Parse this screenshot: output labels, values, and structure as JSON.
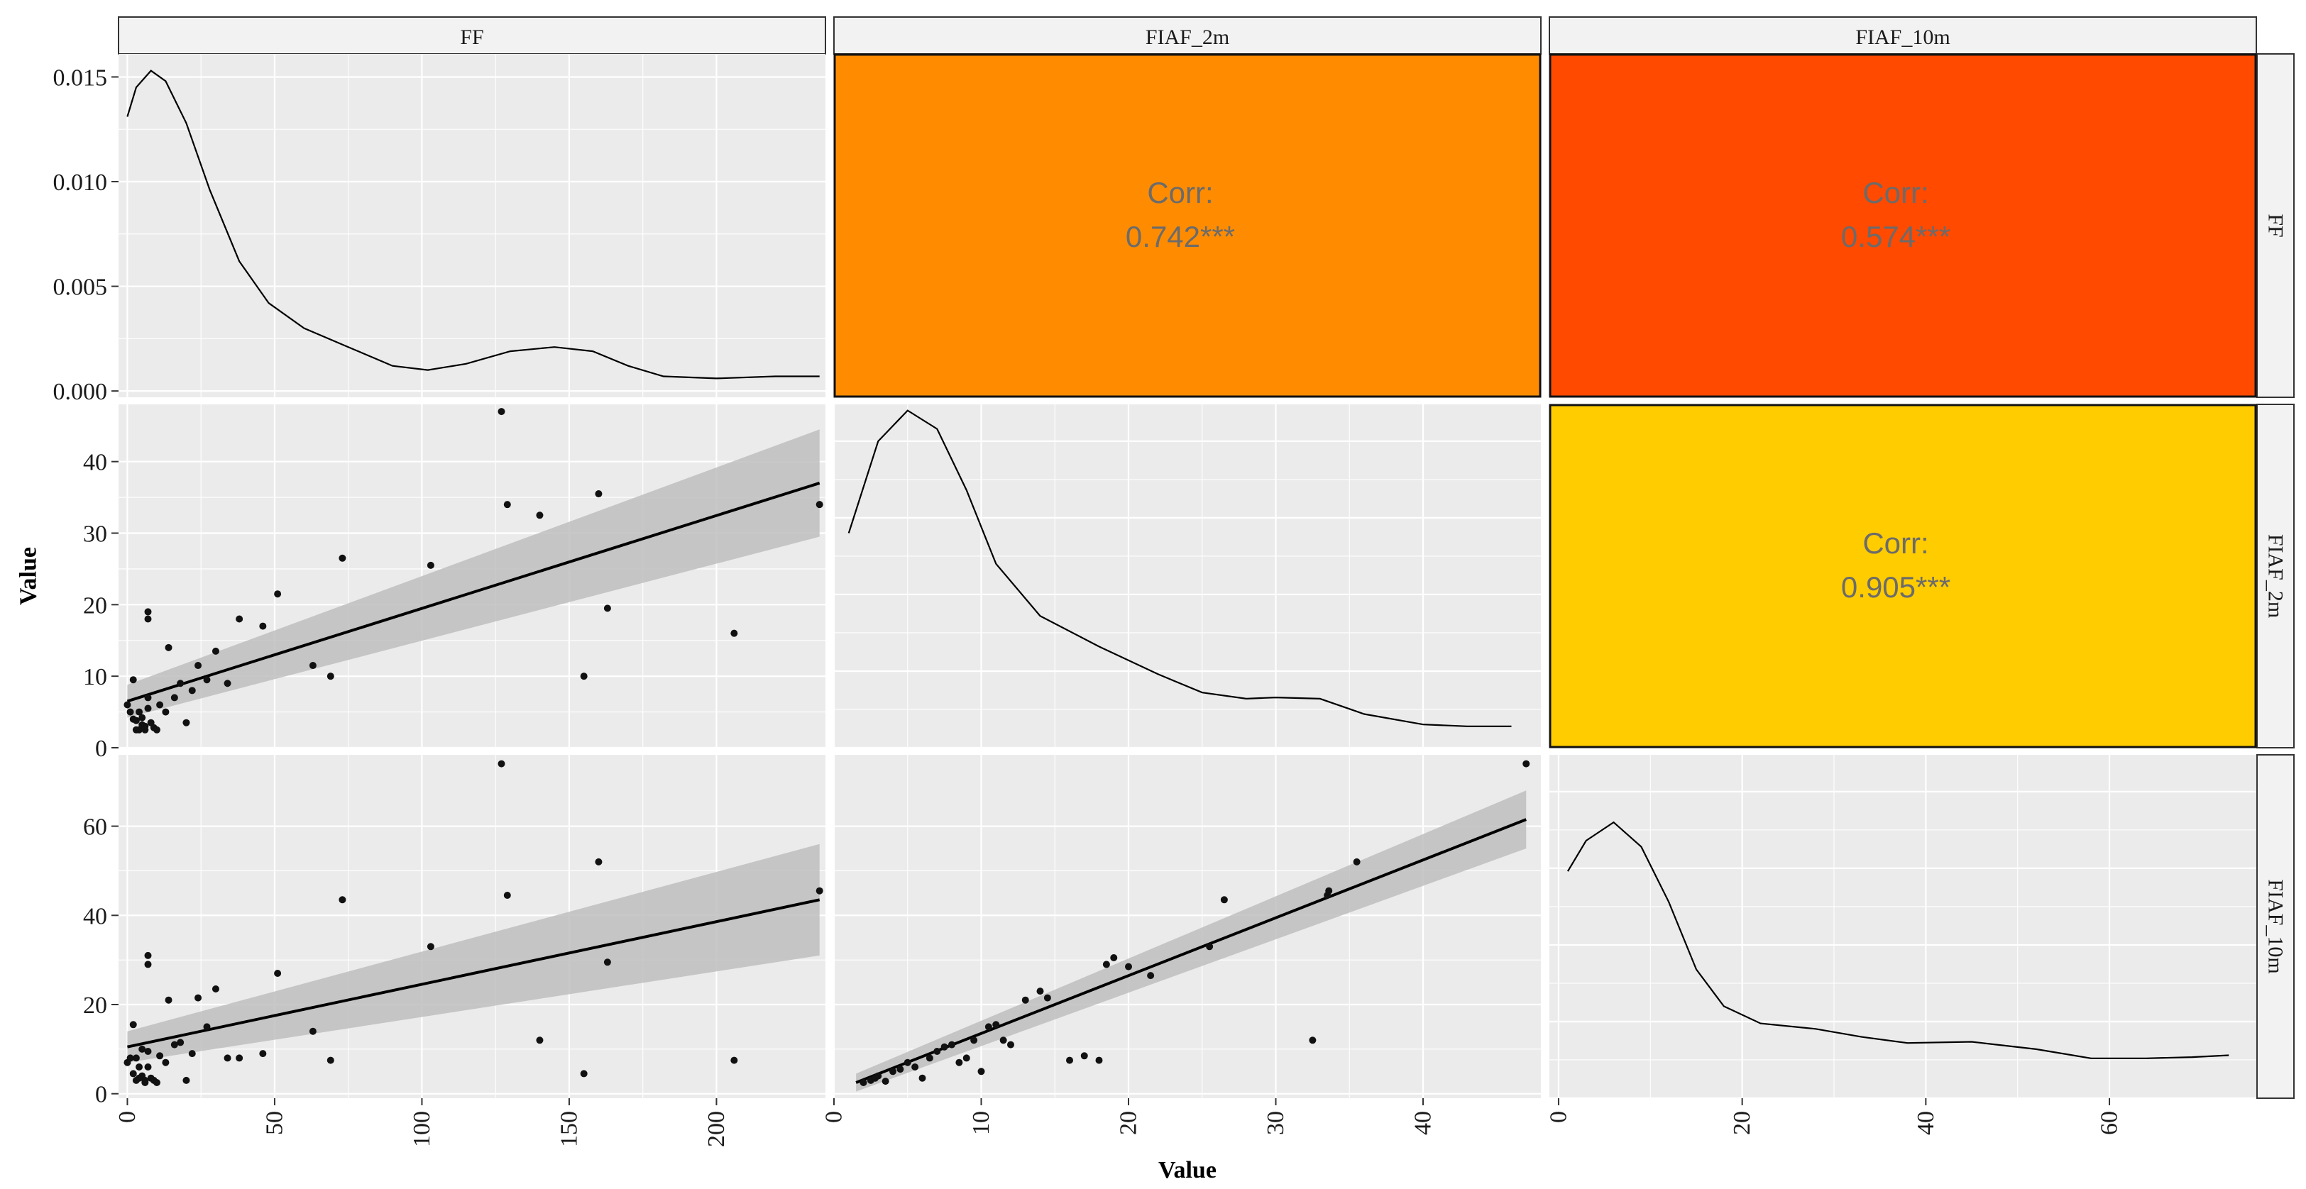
{
  "chart_data": {
    "type": "scatter",
    "title": "",
    "xlabel": "Value",
    "ylabel": "Value",
    "variables": [
      "FF",
      "FIAF_2m",
      "FIAF_10m"
    ],
    "axes": {
      "FF": {
        "range": [
          -3,
          237
        ],
        "ticks": [
          0,
          50,
          100,
          150,
          200
        ]
      },
      "FIAF_2m": {
        "range": [
          0,
          48
        ],
        "ticks": [
          0,
          10,
          20,
          30,
          40
        ]
      },
      "FIAF_10m": {
        "range": [
          -1,
          76
        ],
        "ticks": [
          0,
          20,
          40,
          60
        ]
      }
    },
    "density_axis": {
      "range": [
        -0.0003,
        0.0161
      ],
      "ticks": [
        0.0,
        0.005,
        0.01,
        0.015
      ],
      "tick_labels": [
        "0.000",
        "0.005",
        "0.010",
        "0.015"
      ]
    },
    "densities": {
      "FF": [
        [
          0,
          0.0131
        ],
        [
          3,
          0.0145
        ],
        [
          8,
          0.0153
        ],
        [
          13,
          0.0148
        ],
        [
          20,
          0.0128
        ],
        [
          28,
          0.0096
        ],
        [
          38,
          0.0062
        ],
        [
          48,
          0.0042
        ],
        [
          60,
          0.003
        ],
        [
          75,
          0.0021
        ],
        [
          90,
          0.0012
        ],
        [
          102,
          0.001
        ],
        [
          115,
          0.0013
        ],
        [
          130,
          0.0019
        ],
        [
          145,
          0.0021
        ],
        [
          158,
          0.0019
        ],
        [
          170,
          0.0012
        ],
        [
          182,
          0.0007
        ],
        [
          200,
          0.0006
        ],
        [
          220,
          0.0007
        ],
        [
          235,
          0.0007
        ]
      ],
      "FIAF_2m": [
        [
          1,
          0.035
        ],
        [
          3,
          0.05
        ],
        [
          5,
          0.055
        ],
        [
          7,
          0.052
        ],
        [
          9,
          0.042
        ],
        [
          11,
          0.03
        ],
        [
          14,
          0.0215
        ],
        [
          18,
          0.0165
        ],
        [
          22,
          0.012
        ],
        [
          25,
          0.009
        ],
        [
          28,
          0.008
        ],
        [
          30,
          0.0082
        ],
        [
          33,
          0.008
        ],
        [
          36,
          0.0055
        ],
        [
          40,
          0.0038
        ],
        [
          43,
          0.0035
        ],
        [
          46,
          0.0035
        ]
      ],
      "FIAF_10m": [
        [
          1,
          0.037
        ],
        [
          3,
          0.042
        ],
        [
          6,
          0.045
        ],
        [
          9,
          0.041
        ],
        [
          12,
          0.032
        ],
        [
          15,
          0.021
        ],
        [
          18,
          0.015
        ],
        [
          22,
          0.0122
        ],
        [
          28,
          0.0113
        ],
        [
          33,
          0.01
        ],
        [
          38,
          0.009
        ],
        [
          45,
          0.0092
        ],
        [
          52,
          0.008
        ],
        [
          58,
          0.0065
        ],
        [
          64,
          0.0065
        ],
        [
          69,
          0.0067
        ],
        [
          73,
          0.007
        ]
      ]
    },
    "density_display_max": 0.056,
    "points": [
      [
        0,
        6
      ],
      [
        1,
        5
      ],
      [
        2,
        9.5
      ],
      [
        2,
        4
      ],
      [
        3,
        2.5
      ],
      [
        3,
        3.8
      ],
      [
        4,
        5
      ],
      [
        4,
        2.5
      ],
      [
        5,
        3.2
      ],
      [
        5,
        4.2
      ],
      [
        6,
        3
      ],
      [
        6,
        2.5
      ],
      [
        7,
        7
      ],
      [
        7,
        5.5
      ],
      [
        7,
        19
      ],
      [
        7,
        18
      ],
      [
        8,
        3.5
      ],
      [
        9,
        2.8
      ],
      [
        10,
        2.5
      ],
      [
        11,
        6
      ],
      [
        13,
        5
      ],
      [
        14,
        14
      ],
      [
        16,
        7
      ],
      [
        18,
        9
      ],
      [
        20,
        3.5
      ],
      [
        22,
        8
      ],
      [
        24,
        11.5
      ],
      [
        27,
        9.5
      ],
      [
        30,
        13.5
      ],
      [
        34,
        9
      ],
      [
        38,
        18
      ],
      [
        46,
        17
      ],
      [
        51,
        21.5
      ],
      [
        63,
        11.5
      ],
      [
        69,
        10
      ],
      [
        73,
        26.5
      ],
      [
        103,
        25.5
      ],
      [
        127,
        47
      ],
      [
        129,
        34
      ],
      [
        140,
        32.5
      ],
      [
        155,
        10
      ],
      [
        160,
        35.5
      ],
      [
        163,
        19.5
      ],
      [
        206,
        16
      ],
      [
        235,
        34
      ]
    ],
    "points_ff_vs_10m": [
      [
        0,
        7
      ],
      [
        1,
        8
      ],
      [
        2,
        15.5
      ],
      [
        2,
        4.5
      ],
      [
        3,
        3
      ],
      [
        3,
        8
      ],
      [
        4,
        6
      ],
      [
        4,
        3.5
      ],
      [
        5,
        4
      ],
      [
        5,
        10
      ],
      [
        6,
        3
      ],
      [
        6,
        2.5
      ],
      [
        7,
        9.5
      ],
      [
        7,
        6
      ],
      [
        7,
        31
      ],
      [
        7,
        29
      ],
      [
        8,
        3.5
      ],
      [
        9,
        3
      ],
      [
        10,
        2.5
      ],
      [
        11,
        8.5
      ],
      [
        13,
        7
      ],
      [
        14,
        21
      ],
      [
        16,
        11
      ],
      [
        18,
        11.5
      ],
      [
        20,
        3
      ],
      [
        22,
        9
      ],
      [
        24,
        21.5
      ],
      [
        27,
        15
      ],
      [
        30,
        23.5
      ],
      [
        34,
        8
      ],
      [
        38,
        8
      ],
      [
        46,
        9
      ],
      [
        51,
        27
      ],
      [
        63,
        14
      ],
      [
        69,
        7.5
      ],
      [
        73,
        43.5
      ],
      [
        103,
        33
      ],
      [
        127,
        74
      ],
      [
        129,
        44.5
      ],
      [
        140,
        12
      ],
      [
        155,
        4.5
      ],
      [
        160,
        52
      ],
      [
        163,
        29.5
      ],
      [
        206,
        7.5
      ],
      [
        235,
        45.5
      ]
    ],
    "points_2m_vs_10m": [
      [
        2,
        2.5
      ],
      [
        2.5,
        3
      ],
      [
        2.8,
        3.5
      ],
      [
        3,
        4
      ],
      [
        3.5,
        2.8
      ],
      [
        4,
        5
      ],
      [
        4.5,
        5.5
      ],
      [
        5,
        7
      ],
      [
        5.5,
        6
      ],
      [
        6,
        3.5
      ],
      [
        6.5,
        8
      ],
      [
        7,
        9.5
      ],
      [
        7.5,
        10.5
      ],
      [
        8,
        11
      ],
      [
        8.5,
        7
      ],
      [
        9,
        8
      ],
      [
        9.5,
        12
      ],
      [
        10,
        5
      ],
      [
        10.5,
        15
      ],
      [
        11,
        15.5
      ],
      [
        11.5,
        12
      ],
      [
        12,
        11
      ],
      [
        13,
        21
      ],
      [
        14,
        23
      ],
      [
        14.5,
        21.5
      ],
      [
        16,
        7.5
      ],
      [
        17,
        8.5
      ],
      [
        18,
        7.5
      ],
      [
        18.5,
        29
      ],
      [
        19,
        30.5
      ],
      [
        20,
        28.5
      ],
      [
        21.5,
        26.5
      ],
      [
        25.5,
        33
      ],
      [
        26.5,
        43.5
      ],
      [
        32.5,
        12
      ],
      [
        33.5,
        44.5
      ],
      [
        33.6,
        45.5
      ],
      [
        35.5,
        52
      ],
      [
        47,
        74
      ]
    ],
    "fits": {
      "FF_vs_FIAF_2m": {
        "x": [
          0,
          235
        ],
        "y": [
          6.5,
          37
        ],
        "se_lo": [
          4.2,
          29.5
        ],
        "se_hi": [
          8.8,
          44.5
        ]
      },
      "FF_vs_FIAF_10m": {
        "x": [
          0,
          235
        ],
        "y": [
          10.5,
          43.5
        ],
        "se_lo": [
          7.0,
          31.0
        ],
        "se_hi": [
          14.0,
          56.0
        ]
      },
      "FIAF_2m_vs_FIAF_10m": {
        "x": [
          1.5,
          47
        ],
        "y": [
          2.5,
          61.5
        ],
        "se_lo": [
          0.5,
          55.0
        ],
        "se_hi": [
          4.5,
          68.0
        ]
      }
    },
    "correlations": [
      {
        "pair": "FF:FIAF_2m",
        "label": "Corr:",
        "value": "0.742***",
        "color": "#FF8C00"
      },
      {
        "pair": "FF:FIAF_10m",
        "label": "Corr:",
        "value": "0.574***",
        "color": "#FF4A00"
      },
      {
        "pair": "FIAF_2m:FIAF_10m",
        "label": "Corr:",
        "value": "0.905***",
        "color": "#FFCC00"
      }
    ]
  },
  "strips": {
    "top": [
      "FF",
      "FIAF_2m",
      "FIAF_10m"
    ],
    "right": [
      "FF",
      "FIAF_2m",
      "FIAF_10m"
    ]
  },
  "axis_titles": {
    "x": "Value",
    "y": "Value"
  },
  "colors": {
    "panel_bg": "#EBEBEB",
    "grid": "#FFFFFF",
    "strip_bg": "#F2F2F2",
    "ribbon": "#BEBEBE",
    "line": "#000000"
  }
}
